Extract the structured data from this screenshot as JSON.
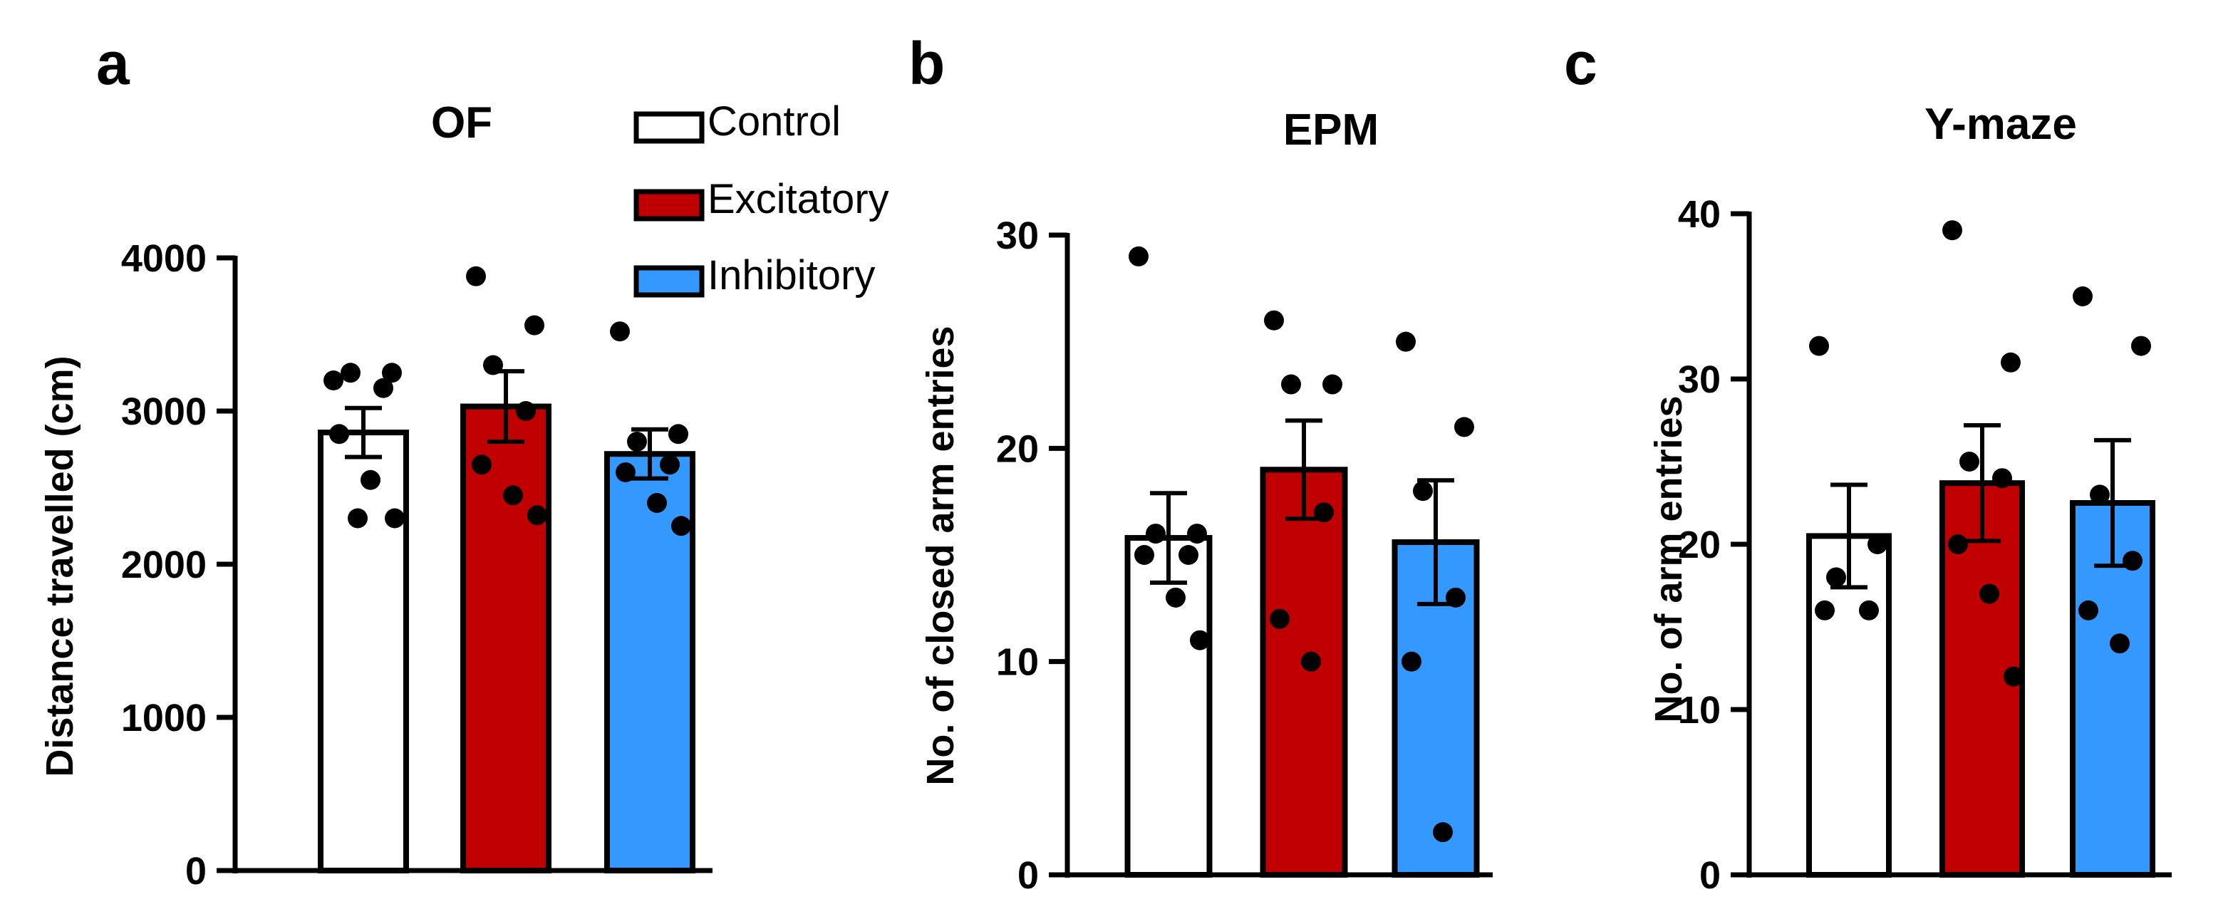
{
  "colors": {
    "Control": "#ffffff",
    "Excitatory": "#c00000",
    "Inhibitory": "#3399ff"
  },
  "legend": {
    "items": [
      "Control",
      "Excitatory",
      "Inhibitory"
    ]
  },
  "chart_data": [
    {
      "type": "bar",
      "panel_label": "a",
      "title": "OF",
      "ylabel": "Distance travelled (cm)",
      "ylim": [
        0,
        4000
      ],
      "yticks": [
        0,
        1000,
        2000,
        3000,
        4000
      ],
      "tick_labels": [
        "0",
        "1000",
        "2000",
        "3000",
        "4000"
      ],
      "categories": [
        "Control",
        "Excitatory",
        "Inhibitory"
      ],
      "values": [
        2860,
        3030,
        2720
      ],
      "sem": [
        160,
        230,
        160
      ],
      "points": [
        [
          3200,
          3250,
          3250,
          3150,
          2850,
          2550,
          2300,
          2300
        ],
        [
          3880,
          3560,
          3300,
          3000,
          2650,
          2450,
          2320
        ],
        [
          3520,
          2850,
          2800,
          2650,
          2600,
          2400,
          2250
        ]
      ]
    },
    {
      "type": "bar",
      "panel_label": "b",
      "title": "EPM",
      "ylabel": "No. of closed arm entries",
      "ylim": [
        0,
        30
      ],
      "yticks": [
        0,
        10,
        20,
        30
      ],
      "tick_labels": [
        "0",
        "10",
        "20",
        "30"
      ],
      "categories": [
        "Control",
        "Excitatory",
        "Inhibitory"
      ],
      "values": [
        15.8,
        19.0,
        15.6
      ],
      "sem": [
        2.1,
        2.3,
        2.9
      ],
      "points": [
        [
          29,
          16,
          16,
          15,
          15,
          13,
          11
        ],
        [
          26,
          23,
          23,
          17,
          12,
          10
        ],
        [
          25,
          21,
          18,
          13,
          10,
          2
        ]
      ]
    },
    {
      "type": "bar",
      "panel_label": "c",
      "title": "Y-maze",
      "ylabel": "No. of arm entries",
      "ylim": [
        0,
        40
      ],
      "yticks": [
        0,
        10,
        20,
        30,
        40
      ],
      "tick_labels": [
        "0",
        "10",
        "20",
        "30",
        "40"
      ],
      "categories": [
        "Control",
        "Excitatory",
        "Inhibitory"
      ],
      "values": [
        20.5,
        23.7,
        22.5
      ],
      "sem": [
        3.1,
        3.5,
        3.8
      ],
      "points": [
        [
          32,
          20,
          18,
          16,
          16
        ],
        [
          39,
          31,
          25,
          24,
          20,
          17,
          12
        ],
        [
          35,
          32,
          23,
          19,
          16,
          14
        ]
      ]
    }
  ]
}
